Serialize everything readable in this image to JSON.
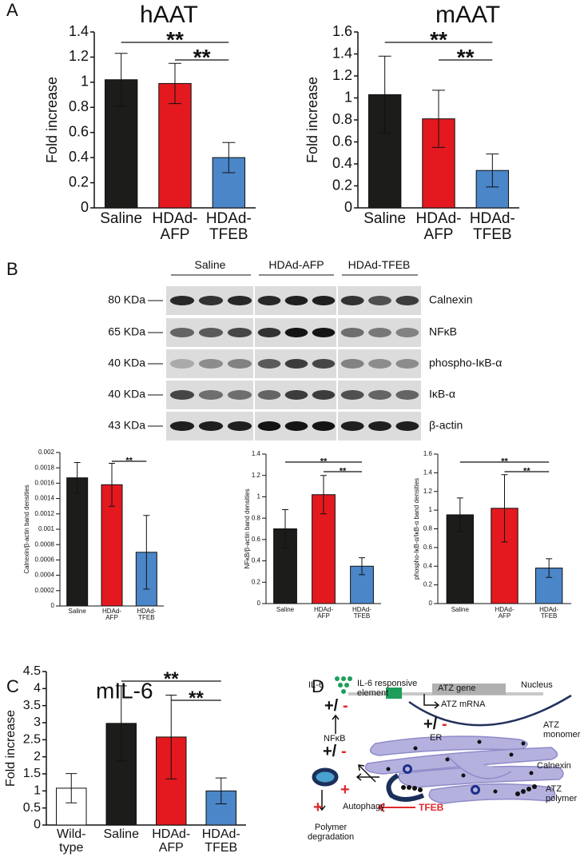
{
  "panel_labels": [
    "A",
    "B",
    "C",
    "D"
  ],
  "chart_data": [
    {
      "type": "bar",
      "title": "hAAT",
      "ylabel": "Fold increase",
      "categories": [
        "Saline",
        "HDAd-\nAFP",
        "HDAd-\nTFEB"
      ],
      "values": [
        1.02,
        0.99,
        0.4
      ],
      "errors": [
        0.21,
        0.16,
        0.12
      ],
      "colors": [
        "#1c1c1a",
        "#e3191f",
        "#4a86c8"
      ],
      "ylim": [
        0,
        1.4
      ],
      "yticks": [
        0,
        0.2,
        0.4,
        0.6,
        0.8,
        1,
        1.2,
        1.4
      ],
      "comparisons": [
        {
          "pair": [
            0,
            2
          ],
          "label": "**"
        },
        {
          "pair": [
            1,
            2
          ],
          "label": "**"
        }
      ]
    },
    {
      "type": "bar",
      "title": "mAAT",
      "ylabel": "Fold increase",
      "categories": [
        "Saline",
        "HDAd-\nAFP",
        "HDAd-\nTFEB"
      ],
      "values": [
        1.03,
        0.81,
        0.34
      ],
      "errors": [
        0.35,
        0.26,
        0.15
      ],
      "colors": [
        "#1c1c1a",
        "#e3191f",
        "#4a86c8"
      ],
      "ylim": [
        0,
        1.6
      ],
      "yticks": [
        0,
        0.2,
        0.4,
        0.6,
        0.8,
        1,
        1.2,
        1.4,
        1.6
      ],
      "comparisons": [
        {
          "pair": [
            0,
            2
          ],
          "label": "**"
        },
        {
          "pair": [
            1,
            2
          ],
          "label": "**"
        }
      ]
    },
    {
      "type": "bar",
      "ylabel": "Calnexin/β-actin band densities",
      "categories": [
        "Saline",
        "HDAd-\nAFP",
        "HDAd-\nTFEB"
      ],
      "values": [
        0.00167,
        0.00158,
        0.0007
      ],
      "errors": [
        0.0002,
        0.00028,
        0.00048
      ],
      "colors": [
        "#1c1c1a",
        "#e3191f",
        "#4a86c8"
      ],
      "ylim": [
        0,
        0.002
      ],
      "yticks": [
        0,
        0.0002,
        0.0004,
        0.0006,
        0.0008,
        0.001,
        0.0012,
        0.0014,
        0.0016,
        0.0018,
        0.002
      ],
      "comparisons": [
        {
          "pair": [
            1,
            2
          ],
          "label": "**"
        }
      ]
    },
    {
      "type": "bar",
      "ylabel": "NFκB/β-actin band densities",
      "categories": [
        "Saline",
        "HDAd-\nAFP",
        "HDAd-\nTFEB"
      ],
      "values": [
        0.7,
        1.02,
        0.35
      ],
      "errors": [
        0.18,
        0.18,
        0.08
      ],
      "colors": [
        "#1c1c1a",
        "#e3191f",
        "#4a86c8"
      ],
      "ylim": [
        0,
        1.4
      ],
      "yticks": [
        0,
        0.2,
        0.4,
        0.6,
        0.8,
        1,
        1.2,
        1.4
      ],
      "comparisons": [
        {
          "pair": [
            0,
            2
          ],
          "label": "**"
        },
        {
          "pair": [
            1,
            2
          ],
          "label": "**"
        }
      ]
    },
    {
      "type": "bar",
      "ylabel": "phospho-IκB-α/IκB-α band densities",
      "categories": [
        "Saline",
        "HDAd-\nAFP",
        "HDAd-\nTFEB"
      ],
      "values": [
        0.95,
        1.02,
        0.38
      ],
      "errors": [
        0.18,
        0.36,
        0.1
      ],
      "colors": [
        "#1c1c1a",
        "#e3191f",
        "#4a86c8"
      ],
      "ylim": [
        0,
        1.6
      ],
      "yticks": [
        0,
        0.2,
        0.4,
        0.6,
        0.8,
        1,
        1.2,
        1.4,
        1.6
      ],
      "comparisons": [
        {
          "pair": [
            0,
            2
          ],
          "label": "**"
        },
        {
          "pair": [
            1,
            2
          ],
          "label": "**"
        }
      ]
    },
    {
      "type": "bar",
      "title": "mIL-6",
      "ylabel": "Fold increase",
      "categories": [
        "Wild-\ntype",
        "Saline",
        "HDAd-\nAFP",
        "HDAd-\nTFEB"
      ],
      "values": [
        1.08,
        2.98,
        2.58,
        1.0
      ],
      "errors": [
        0.43,
        1.1,
        1.23,
        0.38
      ],
      "colors": [
        "#ffffff",
        "#1c1c1a",
        "#e3191f",
        "#4a86c8"
      ],
      "ylim": [
        0,
        4.5
      ],
      "yticks": [
        0,
        0.5,
        1,
        1.5,
        2,
        2.5,
        3,
        3.5,
        4,
        4.5
      ],
      "comparisons": [
        {
          "pair": [
            1,
            3
          ],
          "label": "**"
        },
        {
          "pair": [
            2,
            3
          ],
          "label": "**"
        }
      ]
    }
  ],
  "blot": {
    "groups": [
      "Saline",
      "HDAd-AFP",
      "HDAd-TFEB"
    ],
    "rows": [
      {
        "size": "80 KDa",
        "protein": "Calnexin"
      },
      {
        "size": "65 KDa",
        "protein": "NFκB"
      },
      {
        "size": "40 KDa",
        "protein": "phospho-IκB-α"
      },
      {
        "size": "40 KDa",
        "protein": "IκB-α"
      },
      {
        "size": "43 KDa",
        "protein": "β-actin"
      }
    ]
  },
  "diagram": {
    "il6": "IL-6",
    "element": "IL-6 responsive\nelement",
    "nucleus": "Nucleus",
    "gene": "ATZ gene",
    "mrna": "ATZ mRNA",
    "er": "ER",
    "nfkb": "NFκB",
    "monomer": "ATZ\nmonomer",
    "calnexin": "Calnexin",
    "polymer": "ATZ\npolymer",
    "autophagy": "Autophagy",
    "tfeb": "TFEB",
    "degradation": "Polymer\ndegradation",
    "plus_slash": "+/",
    "minus": "-",
    "plus": "+"
  }
}
